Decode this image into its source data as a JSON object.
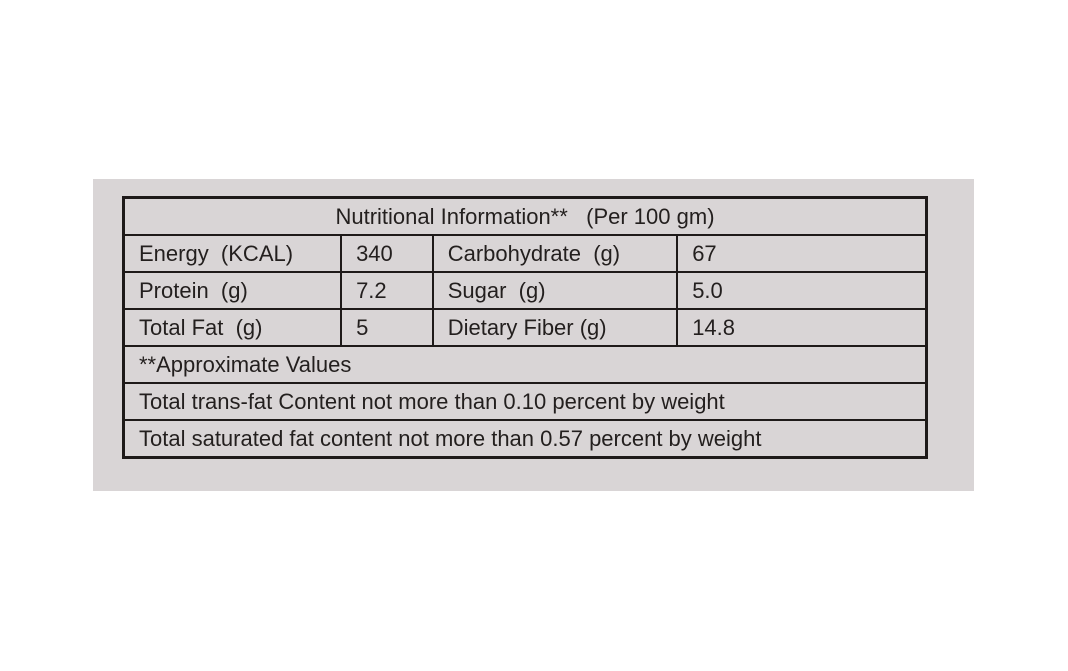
{
  "table": {
    "title": "Nutritional Information**   (Per 100 gm)",
    "rows": [
      [
        "Energy  (KCAL)",
        "340",
        "Carbohydrate  (g)",
        "67"
      ],
      [
        "Protein  (g)",
        "7.2",
        "Sugar  (g)",
        "5.0"
      ],
      [
        "Total Fat  (g)",
        "5",
        "Dietary Fiber (g)",
        "14.8"
      ]
    ],
    "notes": [
      "**Approximate Values",
      "Total trans-fat Content not more than 0.10 percent by weight",
      "Total saturated fat content not more than 0.57 percent by weight"
    ]
  }
}
